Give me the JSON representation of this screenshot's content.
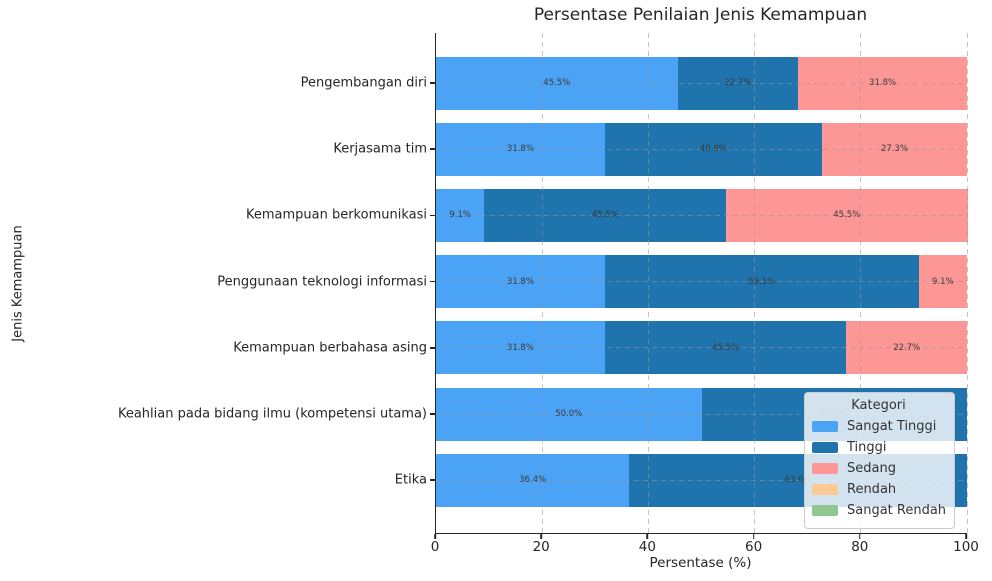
{
  "title": "Persentase Penilaian Jenis Kemampuan",
  "chart_data": {
    "type": "bar",
    "orientation": "horizontal",
    "stacked": true,
    "title": "Persentase Penilaian Jenis Kemampuan",
    "xlabel": "Persentase (%)",
    "ylabel": "Jenis Kemampuan",
    "xlim": [
      0,
      100
    ],
    "xticks": [
      0,
      20,
      40,
      60,
      80,
      100
    ],
    "grid": true,
    "grid_style": "dashed",
    "bar_label_format": "{value}%",
    "categories": [
      "Pengembangan diri",
      "Kerjasama tim",
      "Kemampuan berkomunikasi",
      "Penggunaan teknologi informasi",
      "Kemampuan berbahasa asing",
      "Keahlian pada bidang ilmu (kompetensi utama)",
      "Etika"
    ],
    "series": [
      {
        "name": "Sangat Tinggi",
        "color": "#4ba3f5",
        "values": [
          45.5,
          31.8,
          9.1,
          31.8,
          31.8,
          50.0,
          36.4
        ]
      },
      {
        "name": "Tinggi",
        "color": "#2074ad",
        "values": [
          22.7,
          40.9,
          45.5,
          59.1,
          45.5,
          50.0,
          63.6
        ]
      },
      {
        "name": "Sedang",
        "color": "#fc9795",
        "values": [
          31.8,
          27.3,
          45.5,
          9.1,
          22.7,
          0,
          0
        ]
      },
      {
        "name": "Rendah",
        "color": "#fdc992",
        "values": [
          0,
          0,
          0,
          0,
          0,
          0,
          0
        ]
      },
      {
        "name": "Sangat Rendah",
        "color": "#90c790",
        "values": [
          0,
          0,
          0,
          0,
          0,
          0,
          0
        ]
      }
    ],
    "legend": {
      "title": "Kategori",
      "position": "lower right",
      "entries": [
        "Sangat Tinggi",
        "Tinggi",
        "Sedang",
        "Rendah",
        "Sangat Rendah"
      ]
    }
  }
}
